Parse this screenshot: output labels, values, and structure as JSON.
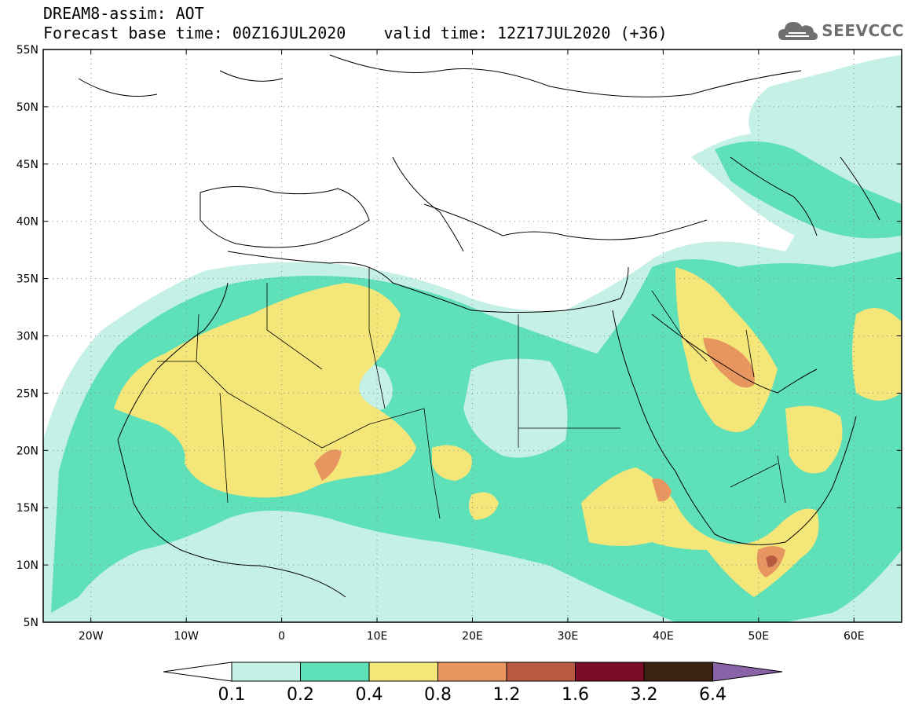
{
  "header": {
    "line1": "DREAM8-assim: AOT",
    "line2": "Forecast base time: 00Z16JUL2020    valid time: 12Z17JUL2020 (+36)"
  },
  "brand": {
    "text": "SEEVCCC",
    "icon": "cloud-logo-icon",
    "color": "#6f6f6f"
  },
  "map": {
    "lon_ticks": [
      "20W",
      "10W",
      "0",
      "10E",
      "20E",
      "30E",
      "40E",
      "50E",
      "60E"
    ],
    "lat_ticks": [
      "55N",
      "50N",
      "45N",
      "40N",
      "35N",
      "30N",
      "25N",
      "20N",
      "15N",
      "10N",
      "5N"
    ],
    "lon_range": [
      -25,
      65
    ],
    "lat_range": [
      5,
      55
    ]
  },
  "colorbar": {
    "labels": [
      "0.1",
      "0.2",
      "0.4",
      "0.8",
      "1.2",
      "1.6",
      "3.2",
      "6.4"
    ],
    "colors": [
      "#ffffff",
      "#c5f0e6",
      "#5ee0b8",
      "#f5e67a",
      "#e89660",
      "#b85a40",
      "#7a0d28",
      "#3a2312",
      "#8a62a8"
    ]
  }
}
